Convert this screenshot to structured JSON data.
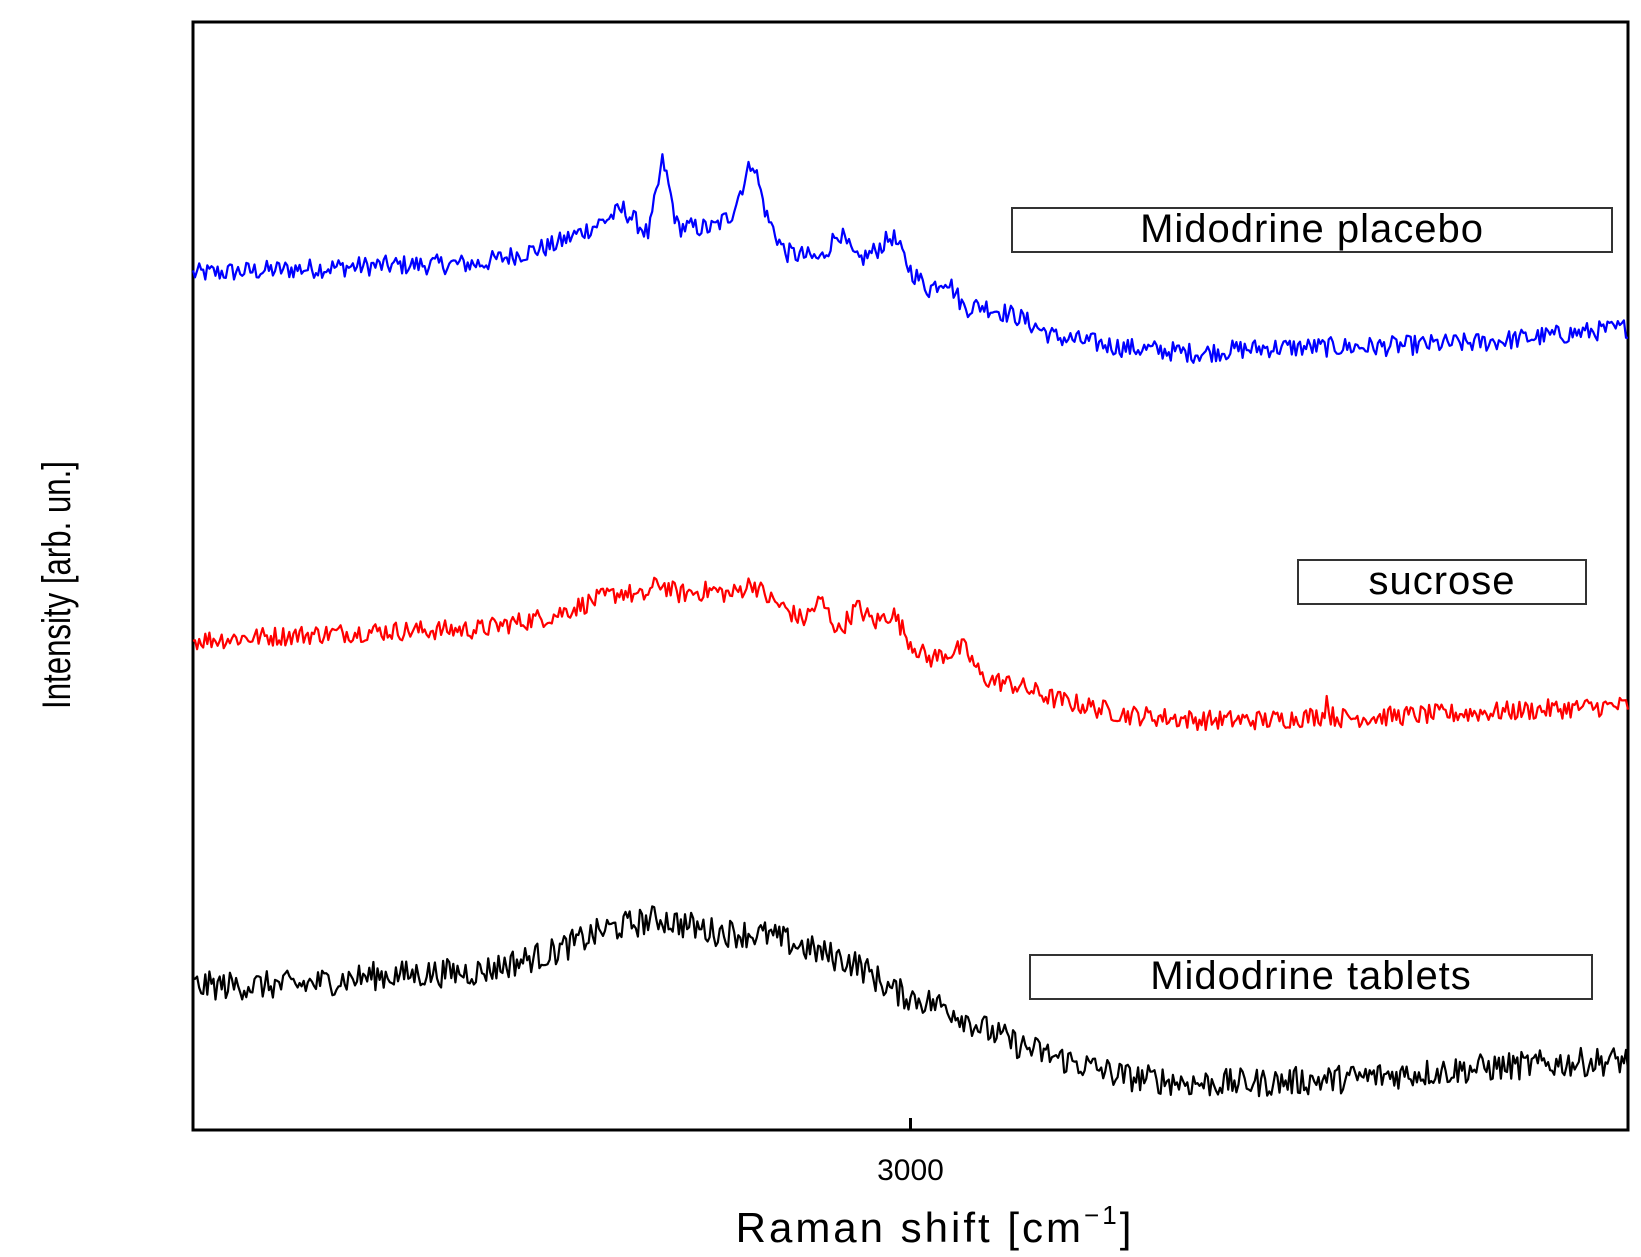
{
  "chart_data": {
    "type": "line",
    "xlabel": "Raman shift [cm",
    "xlabel_superscript": "−1",
    "xlabel_suffix": "]",
    "ylabel": "Intensity [arb. un.]",
    "xlim": [
      2800,
      3200
    ],
    "ylim": [
      0,
      100
    ],
    "x_ticks": [
      3000
    ],
    "x_tick_labels": [
      "3000"
    ],
    "y_tick_labels": false,
    "grid": false,
    "legend": "labels to the right of each trace",
    "series": [
      {
        "name": "Midodrine placebo",
        "color": "#0000ff",
        "x": [
          2800,
          2850,
          2880,
          2900,
          2912,
          2920,
          2927,
          2931,
          2935,
          2945,
          2950,
          2956,
          2960,
          2965,
          2975,
          2980,
          2985,
          2990,
          2995,
          3000,
          3005,
          3010,
          3015,
          3020,
          3030,
          3040,
          3060,
          3080,
          3090,
          3100,
          3130,
          3160,
          3200
        ],
        "y": [
          77.3,
          78.0,
          78.2,
          79.8,
          81.6,
          83.1,
          80.8,
          87.6,
          81.5,
          81.4,
          82.6,
          87.6,
          82.4,
          79.2,
          78.6,
          81.1,
          78.4,
          79.3,
          80.7,
          77.6,
          75.9,
          76.9,
          74.2,
          74.4,
          73.4,
          71.6,
          70.6,
          70.1,
          70.4,
          70.6,
          70.7,
          71.1,
          72.4
        ]
      },
      {
        "name": "sucrose",
        "color": "#ff0000",
        "x": [
          2800,
          2850,
          2880,
          2900,
          2912,
          2920,
          2925,
          2930,
          2935,
          2945,
          2950,
          2956,
          2960,
          2970,
          2975,
          2980,
          2985,
          2990,
          2995,
          3000,
          3005,
          3015,
          3020,
          3030,
          3040,
          3060,
          3080,
          3100,
          3115,
          3116,
          3117,
          3120,
          3130,
          3160,
          3200
        ],
        "y": [
          44.2,
          45.0,
          45.2,
          46.4,
          47.8,
          48.6,
          48.0,
          49.4,
          48.4,
          48.7,
          48.3,
          49.4,
          48.1,
          46.0,
          47.8,
          45.0,
          47.2,
          45.8,
          46.7,
          44.0,
          42.5,
          43.5,
          40.8,
          40.1,
          38.9,
          37.5,
          37.0,
          37.0,
          37.4,
          38.9,
          37.4,
          37.2,
          37.3,
          37.7,
          38.3
        ]
      },
      {
        "name": "Midodrine tablets",
        "color": "#000000",
        "x": [
          2800,
          2830,
          2850,
          2880,
          2900,
          2915,
          2930,
          2945,
          2960,
          2975,
          2985,
          2995,
          3000,
          3010,
          3020,
          3030,
          3040,
          3060,
          3080,
          3100,
          3120,
          3140,
          3160,
          3180,
          3200
        ],
        "y": [
          13.0,
          13.1,
          13.9,
          14.3,
          16.0,
          18.1,
          19.1,
          17.9,
          17.6,
          16.0,
          15.0,
          12.6,
          12.0,
          11.1,
          9.2,
          7.7,
          6.6,
          4.8,
          4.2,
          4.3,
          4.6,
          5.1,
          5.6,
          6.0,
          6.3
        ]
      }
    ]
  }
}
